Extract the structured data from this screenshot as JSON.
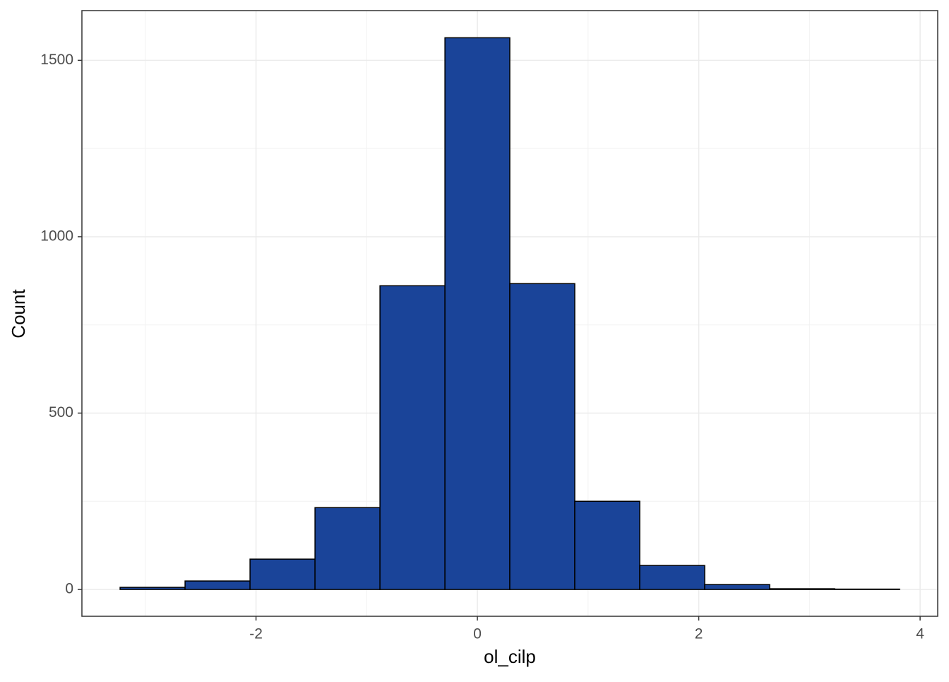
{
  "chart_data": {
    "type": "histogram",
    "x_label": "ol_cilp",
    "y_label": "Count",
    "bins": [
      -3.228,
      -2.641,
      -2.054,
      -1.467,
      -0.88,
      -0.293,
      0.293,
      0.88,
      1.467,
      2.054,
      2.641,
      3.228,
      3.815
    ],
    "values": [
      6,
      24,
      86,
      232,
      861,
      1564,
      867,
      250,
      68,
      14,
      2,
      1
    ],
    "color": "#1a4499",
    "edge_color": "#000000",
    "xlim": [
      -3.573,
      4.159
    ],
    "xticks": [
      -2,
      0,
      2,
      4
    ],
    "ylim": [
      -76,
      1641
    ],
    "yticks": [
      0,
      500,
      1000,
      1500
    ],
    "grid": true
  }
}
